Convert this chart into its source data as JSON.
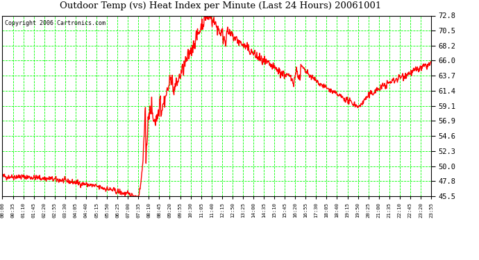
{
  "title": "Outdoor Temp (vs) Heat Index per Minute (Last 24 Hours) 20061001",
  "copyright": "Copyright 2006 Cartronics.com",
  "background_color": "#ffffff",
  "plot_bg_color": "#ffffff",
  "grid_color": "#00ff00",
  "line_color": "#ff0000",
  "line_width": 1.0,
  "y_ticks": [
    45.5,
    47.8,
    50.0,
    52.3,
    54.6,
    56.9,
    59.1,
    61.4,
    63.7,
    66.0,
    68.2,
    70.5,
    72.8
  ],
  "ylim": [
    45.5,
    72.8
  ],
  "x_tick_labels": [
    "00:00",
    "00:35",
    "01:10",
    "01:45",
    "02:20",
    "02:55",
    "03:30",
    "04:05",
    "04:40",
    "05:15",
    "05:50",
    "06:25",
    "07:00",
    "07:35",
    "08:10",
    "08:45",
    "09:20",
    "09:55",
    "10:30",
    "11:05",
    "11:40",
    "12:15",
    "12:50",
    "13:25",
    "14:00",
    "14:35",
    "15:10",
    "15:45",
    "16:20",
    "16:55",
    "17:30",
    "18:05",
    "18:40",
    "19:15",
    "19:50",
    "20:25",
    "21:00",
    "21:35",
    "22:10",
    "22:45",
    "23:20",
    "23:55"
  ],
  "num_points": 1440,
  "seed": 42
}
